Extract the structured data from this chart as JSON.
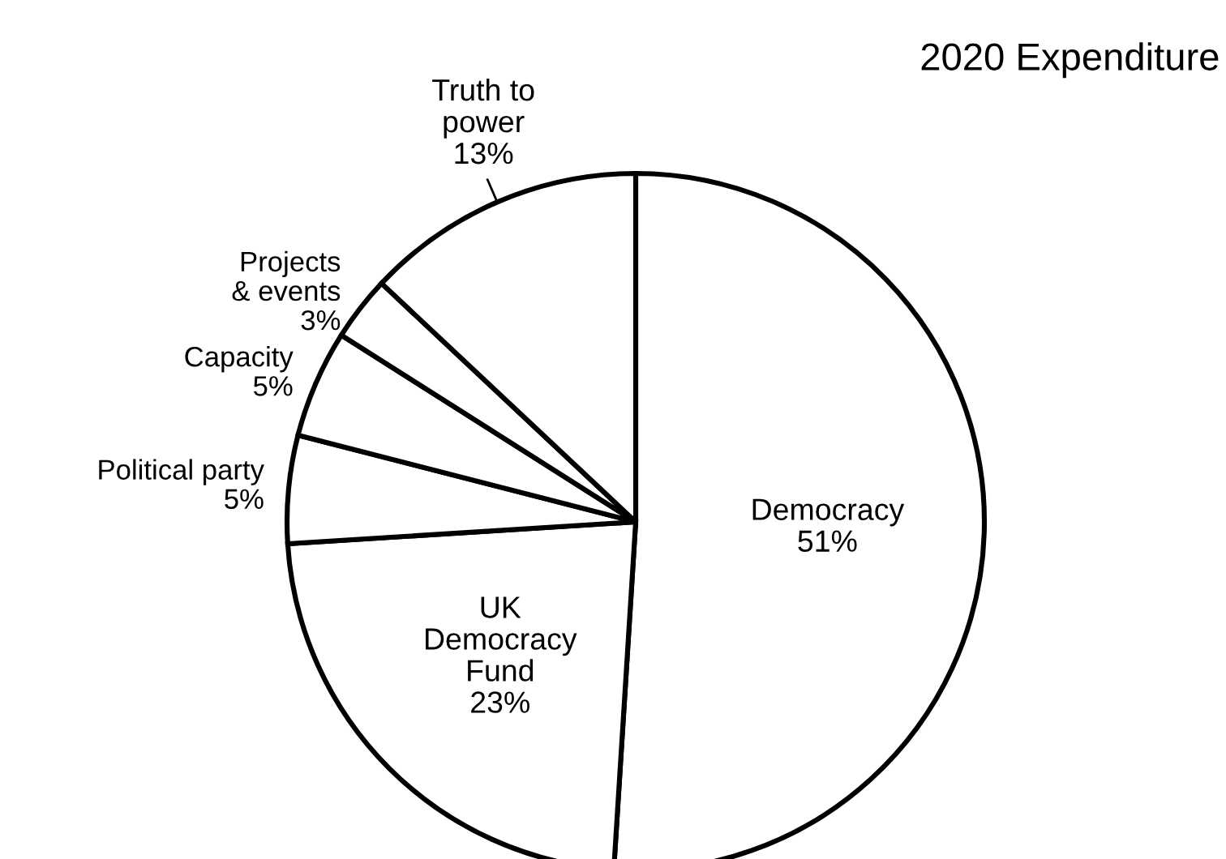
{
  "chart_data": {
    "type": "pie",
    "title": "2020 Expenditure",
    "categories": [
      "Democracy",
      "UK\nDemocracy\nFund",
      "Political party",
      "Capacity",
      "Projects\n& events",
      "Truth to\npower"
    ],
    "values": [
      51,
      23,
      5,
      5,
      3,
      13
    ],
    "colors": [
      "#ffffff",
      "#ffffff",
      "#ffffff",
      "#ffffff",
      "#ffffff",
      "#ffffff"
    ],
    "value_labels": [
      "51%",
      "23%",
      "5%",
      "5%",
      "3%",
      "13%"
    ]
  }
}
